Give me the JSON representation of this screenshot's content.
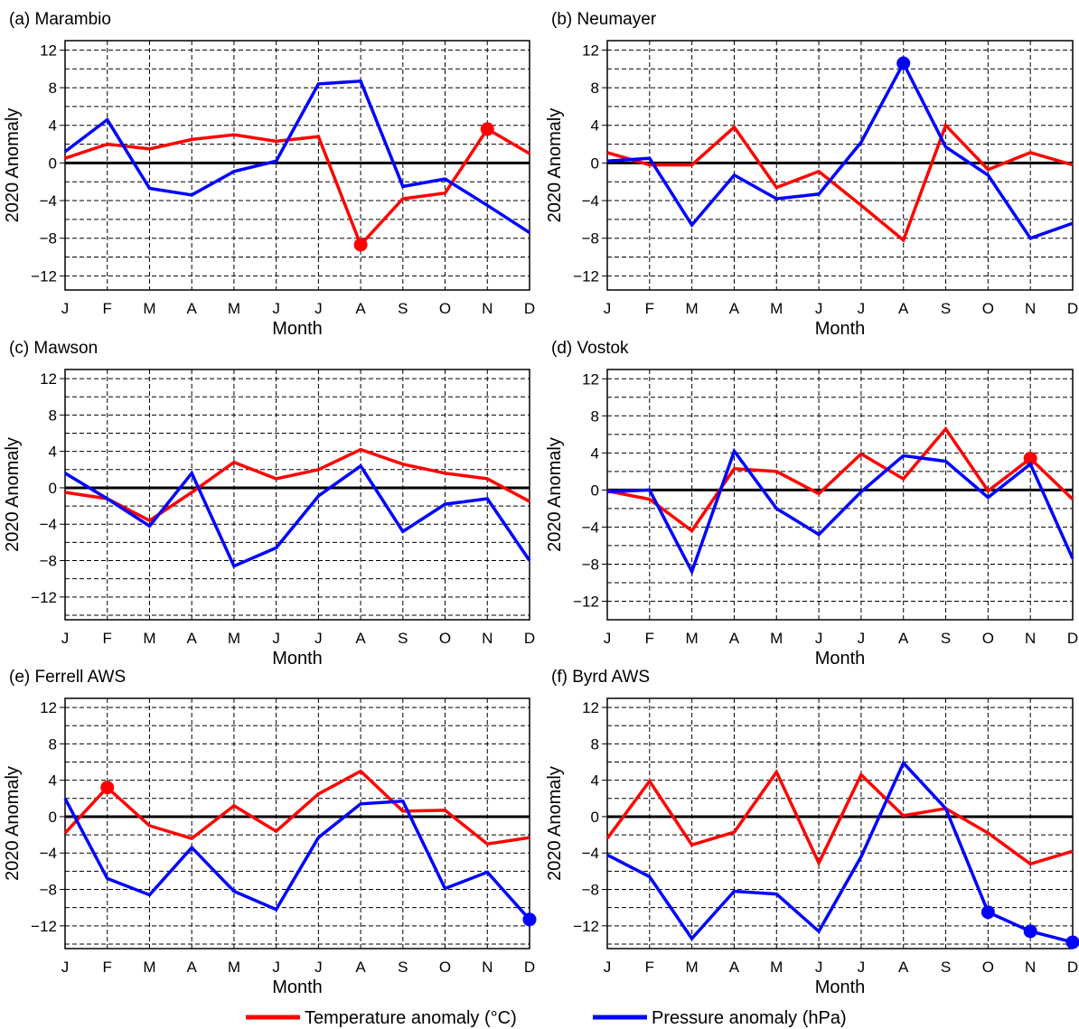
{
  "chart_data": [
    {
      "type": "line",
      "title": "(a) Marambio",
      "xlabel": "Month",
      "ylabel": "2020 Anomaly",
      "categories": [
        "J",
        "F",
        "M",
        "A",
        "M",
        "J",
        "J",
        "A",
        "S",
        "O",
        "N",
        "D"
      ],
      "yticks": [
        "12",
        "8",
        "4",
        "0",
        "−4",
        "−8",
        "−12"
      ],
      "ylim": [
        -13.5,
        13
      ],
      "grid": true,
      "series": [
        {
          "name": "Temperature anomaly (°C)",
          "color": "#ff0000",
          "values": [
            0.5,
            2.0,
            1.5,
            2.5,
            3.0,
            2.3,
            2.8,
            -8.7,
            -3.8,
            -3.2,
            3.6,
            1.0
          ],
          "markers": [
            7,
            10
          ]
        },
        {
          "name": "Pressure anomaly (hPa)",
          "color": "#0000ff",
          "values": [
            1.2,
            4.6,
            -2.7,
            -3.4,
            -0.9,
            0.2,
            8.4,
            8.7,
            -2.5,
            -1.7,
            -4.5,
            -7.4
          ],
          "markers": []
        }
      ]
    },
    {
      "type": "line",
      "title": "(b) Neumayer",
      "xlabel": "Month",
      "ylabel": "2020 Anomaly",
      "categories": [
        "J",
        "F",
        "M",
        "A",
        "M",
        "J",
        "J",
        "A",
        "S",
        "O",
        "N",
        "D"
      ],
      "yticks": [
        "12",
        "8",
        "4",
        "0",
        "−4",
        "−8",
        "−12"
      ],
      "ylim": [
        -13.5,
        13
      ],
      "grid": true,
      "series": [
        {
          "name": "Temperature anomaly (°C)",
          "color": "#ff0000",
          "values": [
            1.1,
            -0.2,
            -0.2,
            3.8,
            -2.6,
            -0.9,
            -4.5,
            -8.2,
            4.0,
            -0.7,
            1.1,
            -0.2
          ],
          "markers": []
        },
        {
          "name": "Pressure anomaly (hPa)",
          "color": "#0000ff",
          "values": [
            0.2,
            0.5,
            -6.6,
            -1.3,
            -3.8,
            -3.3,
            2.2,
            10.6,
            1.7,
            -1.3,
            -8.0,
            -6.4
          ],
          "markers": [
            7
          ]
        }
      ]
    },
    {
      "type": "line",
      "title": "(c) Mawson",
      "xlabel": "Month",
      "ylabel": "2020 Anomaly",
      "categories": [
        "J",
        "F",
        "M",
        "A",
        "M",
        "J",
        "J",
        "A",
        "S",
        "O",
        "N",
        "D"
      ],
      "yticks": [
        "12",
        "8",
        "4",
        "0",
        "−4",
        "−8",
        "−12"
      ],
      "ylim": [
        -14.5,
        13
      ],
      "grid": true,
      "series": [
        {
          "name": "Temperature anomaly (°C)",
          "color": "#ff0000",
          "values": [
            -0.5,
            -1.2,
            -3.6,
            -0.5,
            2.8,
            1.0,
            2.0,
            4.2,
            2.6,
            1.6,
            1.0,
            -1.5
          ],
          "markers": []
        },
        {
          "name": "Pressure anomaly (hPa)",
          "color": "#0000ff",
          "values": [
            1.6,
            -1.2,
            -4.2,
            1.6,
            -8.6,
            -6.6,
            -0.9,
            2.4,
            -4.8,
            -1.8,
            -1.2,
            -8.0
          ],
          "markers": []
        }
      ]
    },
    {
      "type": "line",
      "title": "(d) Vostok",
      "xlabel": "Month",
      "ylabel": "2020 Anomaly",
      "categories": [
        "J",
        "F",
        "M",
        "A",
        "M",
        "J",
        "J",
        "A",
        "S",
        "O",
        "N",
        "D"
      ],
      "yticks": [
        "12",
        "8",
        "4",
        "0",
        "−4",
        "−8",
        "−12"
      ],
      "ylim": [
        -14,
        13
      ],
      "grid": true,
      "series": [
        {
          "name": "Temperature anomaly (°C)",
          "color": "#ff0000",
          "values": [
            -0.1,
            -1.0,
            -4.4,
            2.3,
            2.0,
            -0.4,
            3.9,
            1.2,
            6.6,
            -0.1,
            3.4,
            -1.0
          ],
          "markers": [
            10
          ]
        },
        {
          "name": "Pressure anomaly (hPa)",
          "color": "#0000ff",
          "values": [
            -0.2,
            0.0,
            -8.8,
            4.2,
            -2.0,
            -4.8,
            -0.2,
            3.7,
            3.1,
            -0.8,
            2.8,
            -7.4
          ],
          "markers": []
        }
      ]
    },
    {
      "type": "line",
      "title": "(e) Ferrell AWS",
      "xlabel": "Month",
      "ylabel": "2020 Anomaly",
      "categories": [
        "J",
        "F",
        "M",
        "A",
        "M",
        "J",
        "J",
        "A",
        "S",
        "O",
        "N",
        "D"
      ],
      "yticks": [
        "12",
        "8",
        "4",
        "0",
        "−4",
        "−8",
        "−12"
      ],
      "ylim": [
        -14.5,
        13
      ],
      "grid": true,
      "series": [
        {
          "name": "Temperature anomaly (°C)",
          "color": "#ff0000",
          "values": [
            -1.8,
            3.2,
            -1.0,
            -2.4,
            1.2,
            -1.6,
            2.5,
            5.0,
            0.6,
            0.7,
            -3.0,
            -2.3
          ],
          "markers": [
            1
          ]
        },
        {
          "name": "Pressure anomaly (hPa)",
          "color": "#0000ff",
          "values": [
            2.0,
            -6.8,
            -8.6,
            -3.4,
            -8.2,
            -10.2,
            -2.3,
            1.4,
            1.7,
            -7.9,
            -6.1,
            -11.3
          ],
          "markers": [
            11
          ]
        }
      ]
    },
    {
      "type": "line",
      "title": "(f) Byrd AWS",
      "xlabel": "Month",
      "ylabel": "2020 Anomaly",
      "categories": [
        "J",
        "F",
        "M",
        "A",
        "M",
        "J",
        "J",
        "A",
        "S",
        "O",
        "N",
        "D"
      ],
      "yticks": [
        "12",
        "8",
        "4",
        "0",
        "−4",
        "−8",
        "−12"
      ],
      "ylim": [
        -14.5,
        13
      ],
      "grid": true,
      "series": [
        {
          "name": "Temperature anomaly (°C)",
          "color": "#ff0000",
          "values": [
            -2.4,
            3.9,
            -3.1,
            -1.7,
            4.9,
            -5.1,
            4.6,
            0.1,
            0.9,
            -1.8,
            -5.2,
            -3.8
          ],
          "markers": []
        },
        {
          "name": "Pressure anomaly (hPa)",
          "color": "#0000ff",
          "values": [
            -4.2,
            -6.6,
            -13.4,
            -8.2,
            -8.5,
            -12.6,
            -4.4,
            5.9,
            0.9,
            -10.5,
            -12.6,
            -13.8
          ],
          "markers": [
            9,
            10,
            11
          ]
        }
      ]
    }
  ],
  "legend": {
    "placement": "bottom-center",
    "items": [
      {
        "label": "Temperature anomaly (°C)",
        "color": "#ff0000"
      },
      {
        "label": "Pressure anomaly (hPa)",
        "color": "#0000ff"
      }
    ]
  }
}
